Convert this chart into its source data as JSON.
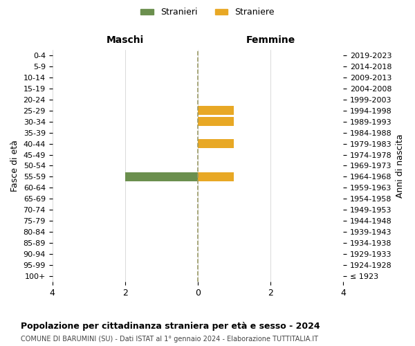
{
  "age_groups": [
    "100+",
    "95-99",
    "90-94",
    "85-89",
    "80-84",
    "75-79",
    "70-74",
    "65-69",
    "60-64",
    "55-59",
    "50-54",
    "45-49",
    "40-44",
    "35-39",
    "30-34",
    "25-29",
    "20-24",
    "15-19",
    "10-14",
    "5-9",
    "0-4"
  ],
  "birth_years": [
    "≤ 1923",
    "1924-1928",
    "1929-1933",
    "1934-1938",
    "1939-1943",
    "1944-1948",
    "1949-1953",
    "1954-1958",
    "1959-1963",
    "1964-1968",
    "1969-1973",
    "1974-1978",
    "1979-1983",
    "1984-1988",
    "1989-1993",
    "1994-1998",
    "1999-2003",
    "2004-2008",
    "2009-2013",
    "2014-2018",
    "2019-2023"
  ],
  "males": [
    0,
    0,
    0,
    0,
    0,
    0,
    0,
    0,
    0,
    2,
    0,
    0,
    0,
    0,
    0,
    0,
    0,
    0,
    0,
    0,
    0
  ],
  "females": [
    0,
    0,
    0,
    0,
    0,
    0,
    0,
    0,
    0,
    1,
    0,
    0,
    1,
    0,
    1,
    1,
    0,
    0,
    0,
    0,
    0
  ],
  "male_color": "#6b8f4e",
  "female_color": "#e8a825",
  "xlim": 4,
  "title": "Popolazione per cittadinanza straniera per età e sesso - 2024",
  "subtitle": "COMUNE DI BARUMINI (SU) - Dati ISTAT al 1° gennaio 2024 - Elaborazione TUTTITALIA.IT",
  "left_header": "Maschi",
  "right_header": "Femmine",
  "left_ylabel": "Fasce di età",
  "right_ylabel": "Anni di nascita",
  "legend_stranieri": "Stranieri",
  "legend_straniere": "Straniere",
  "bar_height": 0.8,
  "background_color": "#ffffff",
  "grid_color": "#cccccc",
  "center_line_color": "#999966",
  "center_line_style": "--"
}
